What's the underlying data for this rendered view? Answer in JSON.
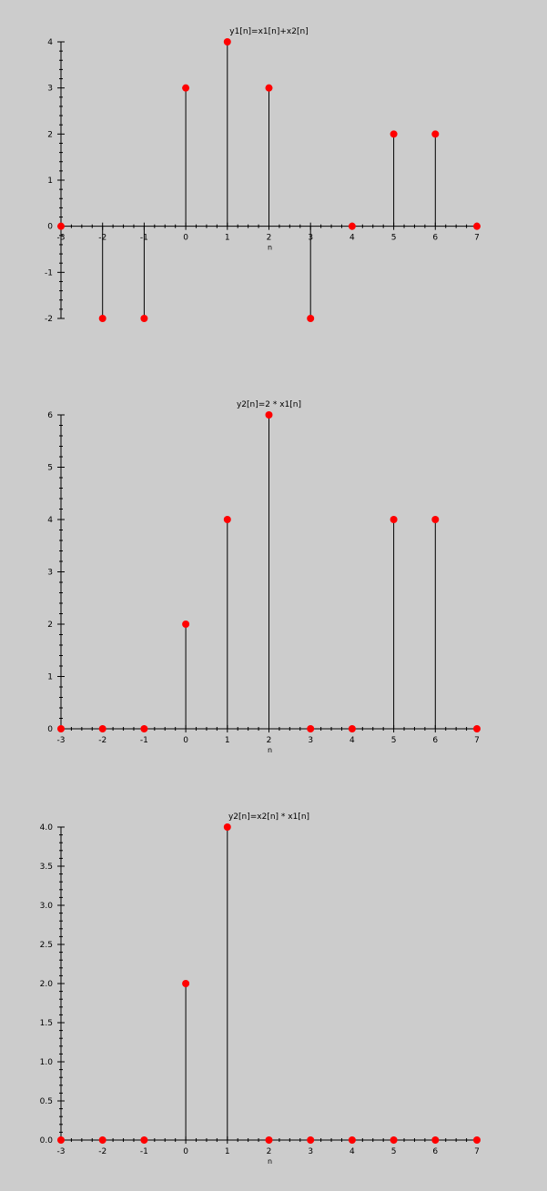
{
  "chart_data": [
    {
      "type": "stem",
      "title": "y1[n]=x1[n]+x2[n]",
      "xlabel": "n",
      "ylabel": "",
      "x": [
        -3,
        -2,
        -1,
        0,
        1,
        2,
        3,
        4,
        5,
        6,
        7
      ],
      "y": [
        0,
        -2,
        -2,
        3,
        4,
        3,
        -2,
        0,
        2,
        2,
        0
      ],
      "xlim": [
        -3,
        7
      ],
      "ylim": [
        -2,
        4
      ],
      "xticks": [
        "-3",
        "-2",
        "-1",
        "0",
        "1",
        "2",
        "3",
        "4",
        "5",
        "6",
        "7"
      ],
      "yticks": [
        "-2",
        "-1",
        "0",
        "1",
        "2",
        "3",
        "4"
      ],
      "grid": false,
      "marker_color": "#ff0000",
      "stem_color": "#000000"
    },
    {
      "type": "stem",
      "title": "y2[n]=2 * x1[n]",
      "xlabel": "n",
      "ylabel": "",
      "x": [
        -3,
        -2,
        -1,
        0,
        1,
        2,
        3,
        4,
        5,
        6,
        7
      ],
      "y": [
        0,
        0,
        0,
        2,
        4,
        6,
        0,
        0,
        4,
        4,
        0
      ],
      "xlim": [
        -3,
        7
      ],
      "ylim": [
        0,
        6
      ],
      "xticks": [
        "-3",
        "-2",
        "-1",
        "0",
        "1",
        "2",
        "3",
        "4",
        "5",
        "6",
        "7"
      ],
      "yticks": [
        "0",
        "1",
        "2",
        "3",
        "4",
        "5",
        "6"
      ],
      "grid": false,
      "marker_color": "#ff0000",
      "stem_color": "#000000"
    },
    {
      "type": "stem",
      "title": "y2[n]=x2[n] * x1[n]",
      "xlabel": "n",
      "ylabel": "",
      "x": [
        -3,
        -2,
        -1,
        0,
        1,
        2,
        3,
        4,
        5,
        6,
        7
      ],
      "y": [
        0,
        0,
        0,
        2,
        4,
        0,
        0,
        0,
        0,
        0,
        0
      ],
      "xlim": [
        -3,
        7
      ],
      "ylim": [
        0,
        4
      ],
      "xticks": [
        "-3",
        "-2",
        "-1",
        "0",
        "1",
        "2",
        "3",
        "4",
        "5",
        "6",
        "7"
      ],
      "yticks": [
        "0.0",
        "0.5",
        "1.0",
        "1.5",
        "2.0",
        "2.5",
        "3.0",
        "3.5",
        "4.0"
      ],
      "grid": false,
      "marker_color": "#ff0000",
      "stem_color": "#000000"
    }
  ]
}
